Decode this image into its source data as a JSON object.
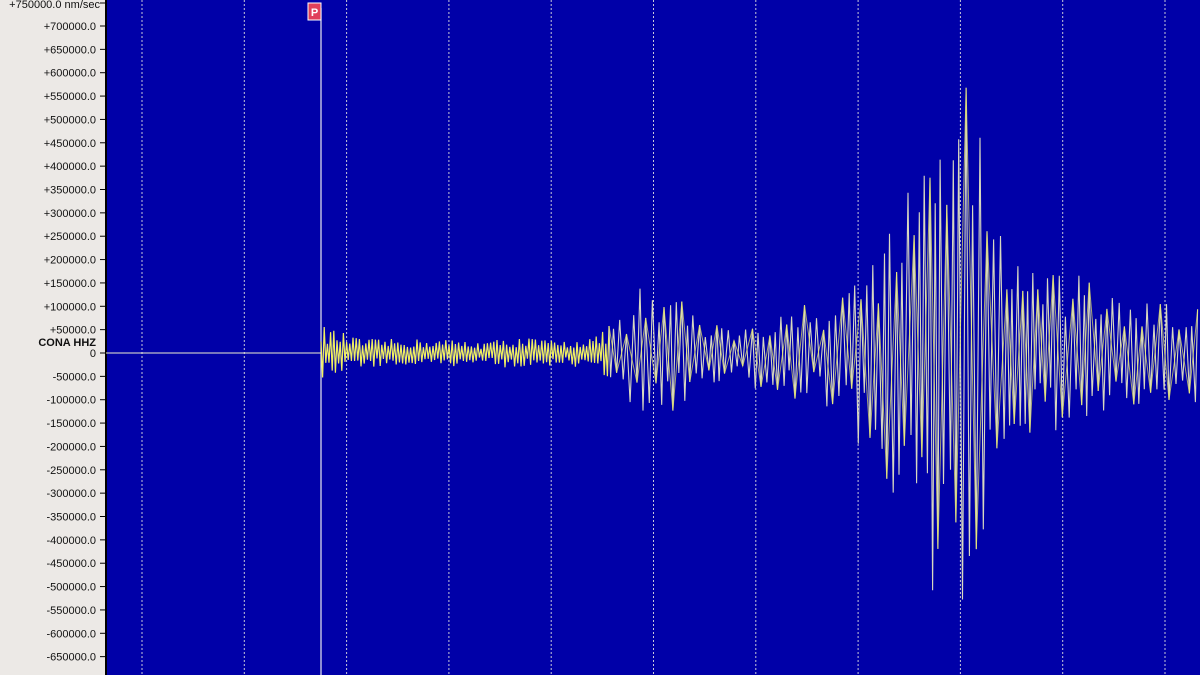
{
  "chart_data": {
    "type": "line",
    "title": "",
    "station_label": "CONA HHZ",
    "unit_label": "+750000.0 nm/sec",
    "ylim": [
      -700000,
      750000
    ],
    "yticks": [
      700000,
      650000,
      600000,
      550000,
      500000,
      450000,
      400000,
      350000,
      300000,
      250000,
      200000,
      150000,
      100000,
      50000,
      0,
      -50000,
      -100000,
      -150000,
      -200000,
      -250000,
      -300000,
      -350000,
      -400000,
      -450000,
      -500000,
      -550000,
      -600000,
      -650000
    ],
    "ytick_labels": [
      "+700000.0",
      "+650000.0",
      "+600000.0",
      "+550000.0",
      "+500000.0",
      "+450000.0",
      "+400000.0",
      "+350000.0",
      "+300000.0",
      "+250000.0",
      "+200000.0",
      "+150000.0",
      "+100000.0",
      "+50000.0",
      "0",
      "-50000.0",
      "-100000.0",
      "-150000.0",
      "-200000.0",
      "-250000.0",
      "-300000.0",
      "-350000.0",
      "-400000.0",
      "-450000.0",
      "-500000.0",
      "-550000.0",
      "-600000.0",
      "-650000.0"
    ],
    "grid": "vertical dashed",
    "pick_marker": "P",
    "amplitude_envelope_after_P": [
      60000,
      30000,
      30000,
      30000,
      25000,
      35000,
      25000,
      40000,
      150000,
      120000,
      60000,
      90000,
      100000,
      130000,
      280000,
      420000,
      750000,
      300000,
      170000,
      170000,
      120000,
      110000,
      110000
    ],
    "colors": {
      "background": "#0000a8",
      "trace": "#f0f060",
      "trace_alt": "#d8d8c0",
      "grid": "#c8c8d8",
      "panel": "#ece9e6",
      "pick": "#e0405a"
    }
  }
}
